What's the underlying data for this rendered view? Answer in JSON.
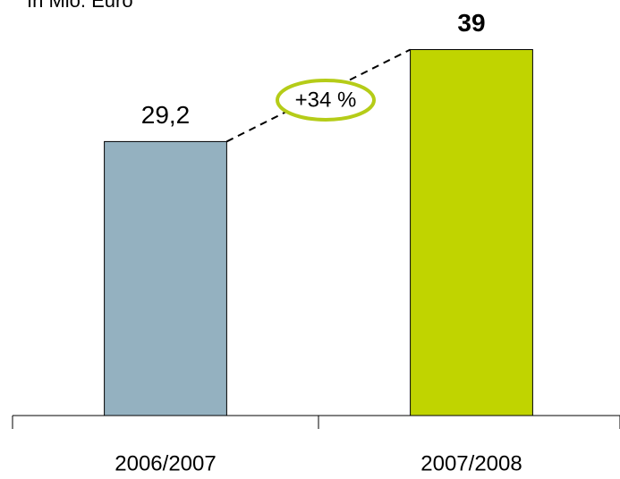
{
  "chart_data": {
    "type": "bar",
    "subtitle": "In Mio. Euro",
    "categories": [
      "2006/2007",
      "2007/2008"
    ],
    "values": [
      29.2,
      39
    ],
    "value_labels": [
      "29,2",
      "39"
    ],
    "value_label_bold": [
      false,
      true
    ],
    "colors": [
      "#94b1c0",
      "#c0d400"
    ],
    "ylim": [
      0,
      44
    ],
    "annotation": "+34 %",
    "annotation_color": "#b5cc18"
  }
}
